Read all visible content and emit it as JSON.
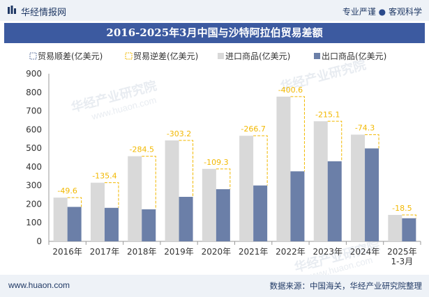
{
  "header": {
    "brand": "华经情报网",
    "slogan_left": "专业严谨",
    "slogan_dot": "●",
    "slogan_right": "客观科学"
  },
  "title": "2016-2025年3月中国与沙特阿拉伯贸易差额",
  "watermark": {
    "cn": "华经产业研究院",
    "url": "www.huaon.com"
  },
  "footer": {
    "url": "www.huaon.com",
    "source": "数据来源：中国海关，华经产业研究院整理"
  },
  "colors": {
    "import": "#d9d9d9",
    "export": "#6b7fa8",
    "balance_line": "#f2b800",
    "label": "#f2b800",
    "header_bg": "#3c5aa0"
  },
  "chart_data": {
    "type": "bar",
    "categories": [
      "2016年",
      "2017年",
      "2018年",
      "2019年",
      "2020年",
      "2021年",
      "2022年",
      "2023年",
      "2024年",
      "2025年\n1-3月"
    ],
    "series": [
      {
        "name": "进口商品(亿美元)",
        "values": [
          235,
          315,
          457,
          542,
          389,
          567,
          777,
          645,
          573,
          142
        ]
      },
      {
        "name": "出口商品(亿美元)",
        "values": [
          185,
          180,
          172,
          239,
          280,
          300,
          376,
          430,
          499,
          124
        ]
      }
    ],
    "balance": {
      "surplus_name": "贸易顺差(亿美元)",
      "deficit_name": "贸易逆差(亿美元)",
      "values": [
        -49.6,
        -135.4,
        -284.5,
        -303.2,
        -109.3,
        -266.7,
        -400.6,
        -215.1,
        -74.3,
        -18.5
      ],
      "labels": [
        "-49.6",
        "-135.4",
        "-284.5",
        "-303.2",
        "-109.3",
        "-266.7",
        "-400.6",
        "-215.1",
        "-74.3",
        "-18.5"
      ]
    },
    "ylim": [
      0,
      900
    ],
    "yticks": [
      0,
      100,
      200,
      300,
      400,
      500,
      600,
      700,
      800,
      900
    ],
    "legend_position": "top",
    "grid": false
  }
}
